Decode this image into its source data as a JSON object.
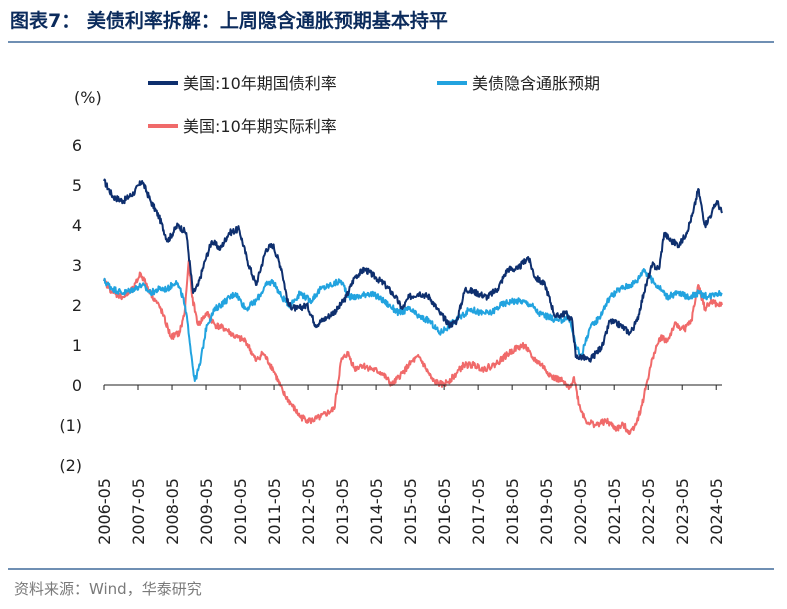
{
  "header": {
    "title": "图表7： 美债利率拆解：上周隐含通胀预期基本持平"
  },
  "footer": {
    "source": "资料来源：Wind，华泰研究"
  },
  "chart_data": {
    "type": "line",
    "title": "美债利率拆解：上周隐含通胀预期基本持平",
    "ylabel": "(%)",
    "ylim": [
      -2,
      6
    ],
    "yticks": [
      6,
      5,
      4,
      3,
      2,
      1,
      0,
      -1,
      -2
    ],
    "ytick_labels": [
      "6",
      "5",
      "4",
      "3",
      "2",
      "1",
      "0",
      "(1)",
      "(2)"
    ],
    "x_start": 2006.33,
    "x_end": 2024.5,
    "xticks": [
      2006.33,
      2007.33,
      2008.33,
      2009.33,
      2010.33,
      2011.33,
      2012.33,
      2013.33,
      2014.33,
      2015.33,
      2016.33,
      2017.33,
      2018.33,
      2019.33,
      2020.33,
      2021.33,
      2022.33,
      2023.33,
      2024.33
    ],
    "xtick_labels": [
      "2006-05",
      "2007-05",
      "2008-05",
      "2009-05",
      "2010-05",
      "2011-05",
      "2012-05",
      "2013-05",
      "2014-05",
      "2015-05",
      "2016-05",
      "2017-05",
      "2018-05",
      "2019-05",
      "2020-05",
      "2021-05",
      "2022-05",
      "2023-05",
      "2024-05"
    ],
    "series": [
      {
        "name": "美国:10年期国债利率",
        "color": "#0e2f6e",
        "x": [
          2006.33,
          2006.6,
          2006.9,
          2007.2,
          2007.45,
          2007.7,
          2007.95,
          2008.2,
          2008.5,
          2008.75,
          2008.95,
          2009.1,
          2009.3,
          2009.5,
          2009.75,
          2010.0,
          2010.3,
          2010.55,
          2010.8,
          2011.1,
          2011.3,
          2011.55,
          2011.75,
          2012.0,
          2012.3,
          2012.55,
          2012.9,
          2013.2,
          2013.45,
          2013.7,
          2014.0,
          2014.3,
          2014.6,
          2014.9,
          2015.1,
          2015.3,
          2015.6,
          2015.9,
          2016.2,
          2016.5,
          2016.7,
          2016.95,
          2017.3,
          2017.6,
          2017.9,
          2018.2,
          2018.5,
          2018.8,
          2019.0,
          2019.3,
          2019.6,
          2019.9,
          2020.1,
          2020.2,
          2020.4,
          2020.6,
          2020.8,
          2021.0,
          2021.2,
          2021.5,
          2021.8,
          2022.0,
          2022.2,
          2022.45,
          2022.65,
          2022.8,
          2023.0,
          2023.25,
          2023.45,
          2023.65,
          2023.8,
          2024.0,
          2024.2,
          2024.35,
          2024.5
        ],
        "y": [
          5.1,
          4.7,
          4.6,
          4.8,
          5.1,
          4.6,
          4.2,
          3.6,
          4.0,
          3.8,
          2.3,
          2.5,
          3.1,
          3.6,
          3.4,
          3.8,
          3.9,
          3.1,
          2.5,
          3.4,
          3.5,
          2.9,
          2.0,
          1.9,
          2.0,
          1.5,
          1.7,
          1.9,
          2.2,
          2.7,
          2.9,
          2.7,
          2.5,
          2.2,
          1.9,
          2.2,
          2.3,
          2.2,
          1.8,
          1.5,
          1.6,
          2.4,
          2.3,
          2.2,
          2.4,
          2.9,
          2.9,
          3.2,
          2.7,
          2.5,
          1.7,
          1.8,
          1.6,
          0.7,
          0.7,
          0.6,
          0.8,
          1.0,
          1.6,
          1.5,
          1.3,
          1.6,
          2.3,
          3.0,
          2.9,
          3.8,
          3.6,
          3.5,
          3.8,
          4.3,
          4.9,
          4.0,
          4.3,
          4.6,
          4.3
        ]
      },
      {
        "name": "美债隐含通胀预期",
        "color": "#22a3df",
        "x": [
          2006.33,
          2006.6,
          2006.9,
          2007.2,
          2007.45,
          2007.7,
          2007.95,
          2008.2,
          2008.45,
          2008.65,
          2008.8,
          2008.92,
          2009.0,
          2009.15,
          2009.35,
          2009.6,
          2009.9,
          2010.2,
          2010.5,
          2010.8,
          2011.1,
          2011.3,
          2011.55,
          2011.8,
          2012.1,
          2012.4,
          2012.7,
          2013.0,
          2013.3,
          2013.55,
          2013.8,
          2014.1,
          2014.4,
          2014.7,
          2015.0,
          2015.3,
          2015.6,
          2015.9,
          2016.2,
          2016.5,
          2016.8,
          2017.1,
          2017.4,
          2017.7,
          2018.0,
          2018.3,
          2018.6,
          2018.9,
          2019.1,
          2019.4,
          2019.7,
          2020.0,
          2020.2,
          2020.35,
          2020.6,
          2020.9,
          2021.2,
          2021.5,
          2021.8,
          2022.0,
          2022.2,
          2022.45,
          2022.7,
          2022.9,
          2023.2,
          2023.5,
          2023.8,
          2024.1,
          2024.3,
          2024.5
        ],
        "y": [
          2.6,
          2.4,
          2.3,
          2.4,
          2.5,
          2.3,
          2.4,
          2.4,
          2.6,
          2.2,
          1.5,
          0.6,
          0.1,
          0.5,
          1.5,
          1.9,
          2.1,
          2.3,
          1.9,
          2.1,
          2.5,
          2.6,
          2.2,
          2.0,
          2.3,
          2.1,
          2.4,
          2.5,
          2.6,
          2.2,
          2.2,
          2.3,
          2.2,
          2.0,
          1.8,
          1.9,
          1.7,
          1.6,
          1.3,
          1.5,
          1.7,
          1.9,
          1.8,
          1.8,
          2.0,
          2.1,
          2.1,
          2.0,
          1.8,
          1.7,
          1.6,
          1.7,
          1.0,
          0.7,
          1.4,
          1.7,
          2.2,
          2.4,
          2.5,
          2.6,
          2.9,
          2.6,
          2.4,
          2.2,
          2.3,
          2.2,
          2.3,
          2.2,
          2.3,
          2.3
        ]
      },
      {
        "name": "美国:10年期实际利率",
        "color": "#f06a6a",
        "x": [
          2006.33,
          2006.6,
          2006.9,
          2007.2,
          2007.4,
          2007.7,
          2008.0,
          2008.3,
          2008.55,
          2008.7,
          2008.82,
          2008.92,
          2009.1,
          2009.35,
          2009.6,
          2009.9,
          2010.2,
          2010.5,
          2010.8,
          2011.0,
          2011.3,
          2011.6,
          2011.85,
          2012.1,
          2012.4,
          2012.7,
          2012.9,
          2013.1,
          2013.3,
          2013.5,
          2013.7,
          2013.9,
          2014.2,
          2014.5,
          2014.8,
          2015.1,
          2015.4,
          2015.6,
          2015.8,
          2016.0,
          2016.3,
          2016.6,
          2016.9,
          2017.2,
          2017.5,
          2017.8,
          2018.1,
          2018.4,
          2018.7,
          2018.9,
          2019.2,
          2019.5,
          2019.8,
          2020.0,
          2020.15,
          2020.3,
          2020.5,
          2020.8,
          2021.1,
          2021.4,
          2021.6,
          2021.8,
          2022.0,
          2022.15,
          2022.3,
          2022.5,
          2022.7,
          2022.9,
          2023.1,
          2023.4,
          2023.6,
          2023.8,
          2024.0,
          2024.2,
          2024.35,
          2024.5
        ],
        "y": [
          2.6,
          2.3,
          2.2,
          2.4,
          2.8,
          2.3,
          1.9,
          1.2,
          1.3,
          1.8,
          3.1,
          2.2,
          1.5,
          1.8,
          1.5,
          1.4,
          1.2,
          1.1,
          0.6,
          0.8,
          0.4,
          -0.2,
          -0.5,
          -0.8,
          -0.9,
          -0.8,
          -0.7,
          -0.6,
          0.6,
          0.8,
          0.4,
          0.5,
          0.4,
          0.3,
          0.0,
          0.3,
          0.6,
          0.7,
          0.4,
          0.1,
          0.0,
          0.2,
          0.5,
          0.5,
          0.4,
          0.5,
          0.7,
          0.9,
          1.0,
          0.7,
          0.5,
          0.2,
          0.1,
          -0.1,
          0.2,
          -0.5,
          -0.9,
          -1.0,
          -0.9,
          -1.1,
          -1.0,
          -1.2,
          -0.9,
          -0.5,
          0.1,
          0.8,
          1.2,
          1.1,
          1.5,
          1.4,
          1.6,
          2.5,
          1.9,
          2.1,
          2.0,
          2.0
        ]
      }
    ]
  }
}
